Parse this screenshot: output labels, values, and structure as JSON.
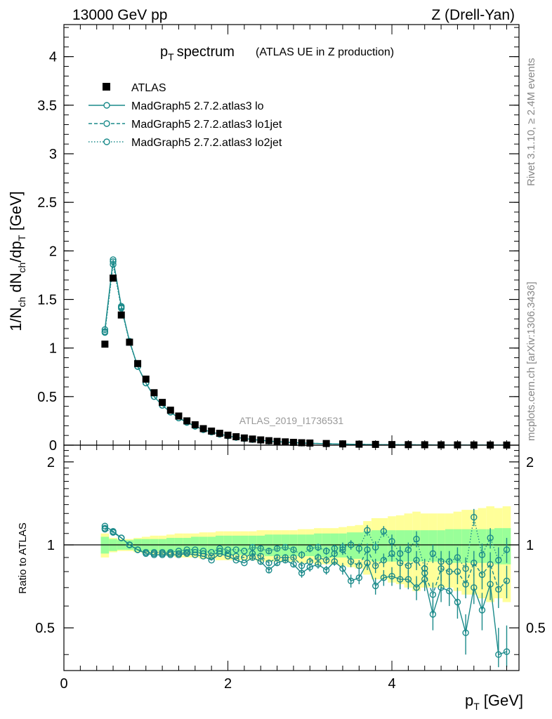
{
  "header": {
    "energy": "13000 GeV pp",
    "process": "Z (Drell-Yan)"
  },
  "side": {
    "rivet": "Rivet 3.1.10, ≥ 2.4M events",
    "mcplots": "mcplots.cern.ch [arXiv:1306.3436]"
  },
  "colors": {
    "data": "#000000",
    "mc": "#1a8a8a",
    "band_inner": "#99ff99",
    "band_outer": "#ffff99"
  },
  "chart_data": [
    {
      "type": "scatter",
      "title_main": "p",
      "title_sub": "T",
      "title_rest": "spectrum",
      "title_extra": "(ATLAS UE in Z production)",
      "ylabel": "1/N_ch dN_ch/dp_T [GeV]",
      "ylabel_parts": [
        "1/N",
        "ch",
        " dN",
        "ch",
        "/dp",
        "T",
        " [GeV]"
      ],
      "watermark": "ATLAS_2019_I1736531",
      "xlim": [
        0,
        5.55
      ],
      "ylim": [
        0,
        4.33
      ],
      "yticks": [
        "0",
        "0.5",
        "1",
        "1.5",
        "2",
        "2.5",
        "3",
        "3.5",
        "4"
      ],
      "ytick_values": [
        0,
        0.5,
        1,
        1.5,
        2,
        2.5,
        3,
        3.5,
        4
      ],
      "legend": [
        {
          "name": "ATLAS",
          "style": "data"
        },
        {
          "name": "MadGraph5 2.7.2.atlas3 lo",
          "style": "solid"
        },
        {
          "name": "MadGraph5 2.7.2.atlas3 lo1jet",
          "style": "dashed"
        },
        {
          "name": "MadGraph5 2.7.2.atlas3 lo2jet",
          "style": "dotted"
        }
      ],
      "x": [
        0.5,
        0.6,
        0.7,
        0.8,
        0.9,
        1.0,
        1.1,
        1.2,
        1.3,
        1.4,
        1.5,
        1.6,
        1.7,
        1.8,
        1.9,
        2.0,
        2.1,
        2.2,
        2.3,
        2.4,
        2.5,
        2.6,
        2.7,
        2.8,
        2.9,
        3.0,
        3.2,
        3.4,
        3.6,
        3.8,
        4.0,
        4.2,
        4.4,
        4.6,
        4.8,
        5.0,
        5.2,
        5.4
      ],
      "series": [
        {
          "name": "ATLAS",
          "values": [
            1.04,
            1.72,
            1.34,
            1.06,
            0.84,
            0.68,
            0.54,
            0.44,
            0.36,
            0.3,
            0.25,
            0.21,
            0.17,
            0.145,
            0.122,
            0.103,
            0.087,
            0.074,
            0.063,
            0.054,
            0.046,
            0.039,
            0.034,
            0.029,
            0.025,
            0.022,
            0.017,
            0.013,
            0.01,
            0.008,
            0.006,
            0.005,
            0.004,
            0.003,
            0.0025,
            0.002,
            0.0016,
            0.0013
          ]
        },
        {
          "name": "MadGraph5 2.7.2.atlas3 lo",
          "values": [
            1.19,
            1.91,
            1.43,
            1.07,
            0.81,
            0.64,
            0.5,
            0.41,
            0.34,
            0.28,
            0.235,
            0.195,
            0.16,
            0.135,
            0.113,
            0.095,
            0.08,
            0.068,
            0.058,
            0.05,
            0.042,
            0.036,
            0.031,
            0.026,
            0.022,
            0.019,
            0.015,
            0.011,
            0.008,
            0.006,
            0.005,
            0.004,
            0.003,
            0.002,
            0.002,
            0.0015,
            0.0012,
            0.001
          ]
        },
        {
          "name": "MadGraph5 2.7.2.atlas3 lo1jet",
          "values": [
            1.17,
            1.89,
            1.42,
            1.07,
            0.81,
            0.64,
            0.5,
            0.41,
            0.34,
            0.28,
            0.235,
            0.195,
            0.16,
            0.135,
            0.113,
            0.095,
            0.08,
            0.068,
            0.058,
            0.05,
            0.042,
            0.036,
            0.031,
            0.026,
            0.022,
            0.019,
            0.015,
            0.011,
            0.008,
            0.006,
            0.005,
            0.004,
            0.003,
            0.002,
            0.002,
            0.0015,
            0.0012,
            0.001
          ]
        },
        {
          "name": "MadGraph5 2.7.2.atlas3 lo2jet",
          "values": [
            1.16,
            1.86,
            1.41,
            1.06,
            0.81,
            0.64,
            0.5,
            0.41,
            0.34,
            0.28,
            0.235,
            0.195,
            0.16,
            0.135,
            0.113,
            0.095,
            0.08,
            0.068,
            0.058,
            0.05,
            0.042,
            0.036,
            0.031,
            0.026,
            0.022,
            0.019,
            0.015,
            0.011,
            0.008,
            0.006,
            0.005,
            0.004,
            0.003,
            0.002,
            0.002,
            0.0015,
            0.0012,
            0.001
          ]
        }
      ]
    },
    {
      "type": "line",
      "ylabel": "Ratio to ATLAS",
      "xlabel_main": "p",
      "xlabel_sub": "T",
      "xlabel_unit": "[GeV]",
      "xlim": [
        0,
        5.55
      ],
      "ylim": [
        0.35,
        2.3
      ],
      "yscale": "log",
      "xticks": [
        "0",
        "2",
        "4"
      ],
      "xtick_values": [
        0,
        2,
        4
      ],
      "yticks": [
        "0.5",
        "1",
        "2"
      ],
      "ytick_values": [
        0.5,
        1,
        2
      ],
      "bin_edges": [
        0.45,
        0.55,
        0.65,
        0.75,
        0.85,
        0.95,
        1.05,
        1.15,
        1.25,
        1.35,
        1.45,
        1.55,
        1.65,
        1.75,
        1.85,
        1.95,
        2.05,
        2.15,
        2.25,
        2.35,
        2.45,
        2.55,
        2.65,
        2.75,
        2.85,
        2.95,
        3.05,
        3.15,
        3.25,
        3.35,
        3.45,
        3.55,
        3.65,
        3.75,
        3.85,
        3.95,
        4.05,
        4.15,
        4.25,
        4.35,
        4.45,
        4.55,
        4.65,
        4.75,
        4.85,
        4.95,
        5.05,
        5.15,
        5.25,
        5.35,
        5.45
      ],
      "band_inner_half": [
        0.07,
        0.05,
        0.04,
        0.04,
        0.05,
        0.05,
        0.05,
        0.05,
        0.06,
        0.06,
        0.06,
        0.07,
        0.07,
        0.07,
        0.08,
        0.08,
        0.08,
        0.08,
        0.08,
        0.08,
        0.09,
        0.09,
        0.09,
        0.09,
        0.09,
        0.09,
        0.1,
        0.1,
        0.1,
        0.1,
        0.11,
        0.11,
        0.12,
        0.13,
        0.13,
        0.13,
        0.13,
        0.13,
        0.13,
        0.13,
        0.13,
        0.13,
        0.14,
        0.14,
        0.14,
        0.14,
        0.14,
        0.14,
        0.15,
        0.15
      ],
      "band_outer_half": [
        0.1,
        0.06,
        0.05,
        0.05,
        0.06,
        0.07,
        0.08,
        0.08,
        0.09,
        0.1,
        0.1,
        0.1,
        0.11,
        0.11,
        0.12,
        0.12,
        0.12,
        0.12,
        0.12,
        0.13,
        0.13,
        0.13,
        0.13,
        0.13,
        0.14,
        0.14,
        0.15,
        0.15,
        0.15,
        0.16,
        0.17,
        0.18,
        0.22,
        0.25,
        0.25,
        0.27,
        0.28,
        0.3,
        0.32,
        0.3,
        0.3,
        0.3,
        0.3,
        0.32,
        0.34,
        0.34,
        0.36,
        0.38,
        0.36,
        0.38
      ],
      "x": [
        0.5,
        0.6,
        0.7,
        0.8,
        0.9,
        1.0,
        1.1,
        1.2,
        1.3,
        1.4,
        1.5,
        1.6,
        1.7,
        1.8,
        1.9,
        2.0,
        2.1,
        2.2,
        2.3,
        2.4,
        2.5,
        2.6,
        2.7,
        2.8,
        2.9,
        3.0,
        3.1,
        3.2,
        3.3,
        3.4,
        3.5,
        3.6,
        3.7,
        3.8,
        3.9,
        4.0,
        4.1,
        4.2,
        4.3,
        4.4,
        4.5,
        4.6,
        4.7,
        4.8,
        4.9,
        5.0,
        5.1,
        5.2,
        5.3,
        5.4
      ],
      "series": [
        {
          "name": "MadGraph5 2.7.2.atlas3 lo",
          "style": "solid",
          "values": [
            1.17,
            1.12,
            1.06,
            1.0,
            0.96,
            0.93,
            0.92,
            0.92,
            0.92,
            0.92,
            0.93,
            0.92,
            0.91,
            0.88,
            0.93,
            0.91,
            0.88,
            0.86,
            0.9,
            0.87,
            0.81,
            0.86,
            0.88,
            0.85,
            0.79,
            0.83,
            0.85,
            0.81,
            0.87,
            0.82,
            0.74,
            0.76,
            0.86,
            0.71,
            0.76,
            0.77,
            0.75,
            0.75,
            0.7,
            0.75,
            0.56,
            0.7,
            0.68,
            0.62,
            0.48,
            0.7,
            0.58,
            0.72,
            0.4,
            0.41
          ],
          "errors": [
            0.01,
            0.01,
            0.01,
            0.01,
            0.01,
            0.01,
            0.01,
            0.01,
            0.01,
            0.01,
            0.01,
            0.01,
            0.01,
            0.01,
            0.01,
            0.01,
            0.01,
            0.01,
            0.02,
            0.02,
            0.02,
            0.02,
            0.02,
            0.02,
            0.03,
            0.03,
            0.03,
            0.03,
            0.03,
            0.04,
            0.04,
            0.04,
            0.05,
            0.05,
            0.05,
            0.06,
            0.06,
            0.06,
            0.07,
            0.07,
            0.07,
            0.08,
            0.08,
            0.08,
            0.08,
            0.09,
            0.09,
            0.09,
            0.1,
            0.1
          ]
        },
        {
          "name": "MadGraph5 2.7.2.atlas3 lo1jet",
          "style": "dashed",
          "values": [
            1.15,
            1.11,
            1.06,
            1.0,
            0.96,
            0.94,
            0.93,
            0.93,
            0.93,
            0.93,
            0.94,
            0.94,
            0.93,
            0.91,
            0.95,
            0.93,
            0.91,
            0.9,
            0.93,
            0.91,
            0.86,
            0.9,
            0.9,
            0.9,
            0.84,
            0.87,
            0.9,
            0.88,
            0.93,
            0.96,
            0.87,
            0.84,
            0.96,
            0.84,
            0.88,
            0.93,
            0.86,
            0.84,
            0.88,
            0.79,
            0.66,
            0.82,
            0.8,
            0.8,
            0.72,
            0.86,
            0.78,
            0.85,
            0.69,
            0.74
          ],
          "errors": [
            0.01,
            0.01,
            0.01,
            0.01,
            0.01,
            0.01,
            0.01,
            0.01,
            0.01,
            0.01,
            0.01,
            0.01,
            0.01,
            0.01,
            0.01,
            0.01,
            0.01,
            0.01,
            0.02,
            0.02,
            0.02,
            0.02,
            0.02,
            0.02,
            0.03,
            0.03,
            0.03,
            0.03,
            0.03,
            0.04,
            0.04,
            0.04,
            0.05,
            0.05,
            0.05,
            0.06,
            0.06,
            0.06,
            0.07,
            0.07,
            0.07,
            0.08,
            0.08,
            0.08,
            0.08,
            0.09,
            0.09,
            0.09,
            0.1,
            0.1
          ]
        },
        {
          "name": "MadGraph5 2.7.2.atlas3 lo2jet",
          "style": "dotted",
          "values": [
            1.14,
            1.11,
            1.06,
            1.0,
            0.96,
            0.94,
            0.94,
            0.94,
            0.94,
            0.95,
            0.96,
            0.96,
            0.95,
            0.94,
            0.97,
            0.96,
            0.96,
            0.95,
            0.98,
            0.97,
            0.95,
            0.97,
            0.98,
            0.96,
            0.92,
            0.97,
            0.98,
            0.95,
            0.97,
            0.98,
            1.0,
            0.97,
            1.13,
            0.98,
            1.12,
            1.03,
            0.93,
            0.96,
            1.05,
            0.82,
            0.93,
            0.87,
            0.87,
            0.9,
            0.82,
            1.26,
            0.92,
            1.06,
            0.88,
            0.96
          ],
          "errors": [
            0.01,
            0.01,
            0.01,
            0.01,
            0.01,
            0.01,
            0.01,
            0.01,
            0.01,
            0.01,
            0.01,
            0.01,
            0.01,
            0.01,
            0.01,
            0.01,
            0.01,
            0.01,
            0.02,
            0.02,
            0.02,
            0.02,
            0.02,
            0.02,
            0.03,
            0.03,
            0.03,
            0.03,
            0.03,
            0.04,
            0.04,
            0.04,
            0.05,
            0.05,
            0.05,
            0.06,
            0.06,
            0.06,
            0.07,
            0.07,
            0.07,
            0.08,
            0.08,
            0.08,
            0.08,
            0.09,
            0.09,
            0.09,
            0.1,
            0.1
          ]
        }
      ]
    }
  ]
}
